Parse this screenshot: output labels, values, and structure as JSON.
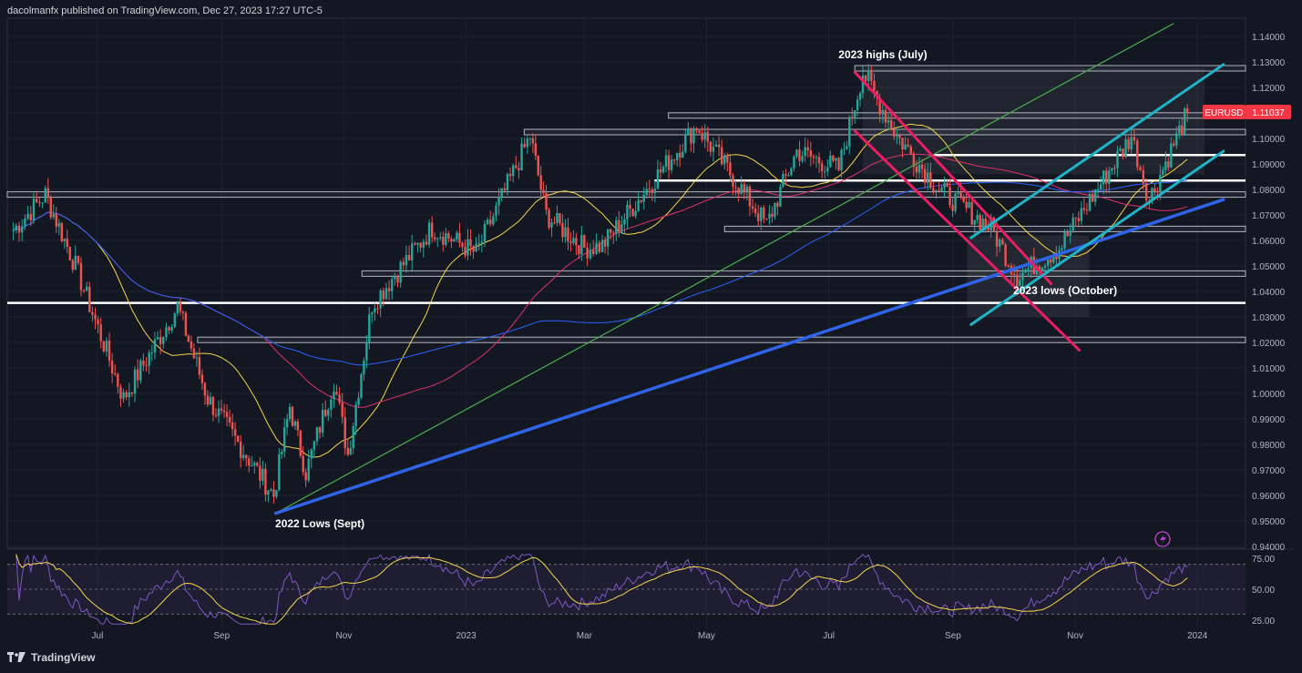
{
  "header": {
    "published_by": "dacolmanfx published on TradingView.com, Dec 27, 2023 17:27 UTC-5"
  },
  "footer": {
    "brand": "TradingView"
  },
  "colors": {
    "background": "#131722",
    "grid": "#1e222d",
    "up": "#26a69a",
    "down": "#ef5350",
    "ma_fast": "#f5d54a",
    "ma_mid": "#e0306e",
    "ma_slow": "#2962ff",
    "trend_green": "#4caf50",
    "trend_blue": "#2f63e8",
    "channel_cyan": "#1fb3c8",
    "channel_pink": "#e91e63",
    "rsi": "#7e57c2",
    "price_tag": "#f23645"
  },
  "chart_data": {
    "type": "candlestick",
    "symbol": "EURUSD",
    "last_price": "1.11037",
    "y_axis": {
      "range": [
        0.94,
        1.145
      ],
      "ticks": [
        "1.14000",
        "1.13000",
        "1.12000",
        "1.11000",
        "1.10000",
        "1.09000",
        "1.08000",
        "1.07000",
        "1.06000",
        "1.05000",
        "1.04000",
        "1.03000",
        "1.02000",
        "1.01000",
        "1.00000",
        "0.99000",
        "0.98000",
        "0.97000",
        "0.96000",
        "0.95000",
        "0.94000"
      ]
    },
    "x_axis": {
      "ticks": [
        "Jul",
        "Sep",
        "Nov",
        "2023",
        "Mar",
        "May",
        "Jul",
        "Sep",
        "Nov",
        "2024"
      ]
    },
    "price_anchors": [
      [
        "2022-05-20",
        1.064
      ],
      [
        "2022-06-05",
        1.078
      ],
      [
        "2022-06-20",
        1.05
      ],
      [
        "2022-07-14",
        0.998
      ],
      [
        "2022-08-10",
        1.034
      ],
      [
        "2022-08-25",
        0.998
      ],
      [
        "2022-09-27",
        0.96
      ],
      [
        "2022-10-05",
        0.995
      ],
      [
        "2022-10-13",
        0.969
      ],
      [
        "2022-10-27",
        1.005
      ],
      [
        "2022-11-03",
        0.976
      ],
      [
        "2022-11-15",
        1.035
      ],
      [
        "2022-12-15",
        1.065
      ],
      [
        "2023-01-06",
        1.055
      ],
      [
        "2023-02-02",
        1.101
      ],
      [
        "2023-02-10",
        1.07
      ],
      [
        "2023-03-01",
        1.057
      ],
      [
        "2023-03-10",
        1.058
      ],
      [
        "2023-04-26",
        1.105
      ],
      [
        "2023-05-31",
        1.066
      ],
      [
        "2023-06-15",
        1.095
      ],
      [
        "2023-07-06",
        1.088
      ],
      [
        "2023-07-18",
        1.126
      ],
      [
        "2023-08-04",
        1.101
      ],
      [
        "2023-08-25",
        1.08
      ],
      [
        "2023-09-20",
        1.065
      ],
      [
        "2023-10-03",
        1.046
      ],
      [
        "2023-10-24",
        1.057
      ],
      [
        "2023-11-29",
        1.101
      ],
      [
        "2023-12-08",
        1.076
      ],
      [
        "2023-12-27",
        1.11
      ]
    ],
    "horizontal_levels": [
      1.1275,
      1.109,
      1.1025,
      1.0935,
      1.0835,
      1.078,
      1.0645,
      1.047,
      1.0355,
      1.021
    ],
    "annotations": [
      {
        "label": "2023 highs (July)"
      },
      {
        "label": "2023 lows (October)"
      },
      {
        "label": "2022 Lows (Sept)"
      }
    ],
    "rsi": {
      "ticks": [
        "75.00",
        "50.00",
        "25.00"
      ],
      "range": [
        20,
        80
      ]
    }
  }
}
